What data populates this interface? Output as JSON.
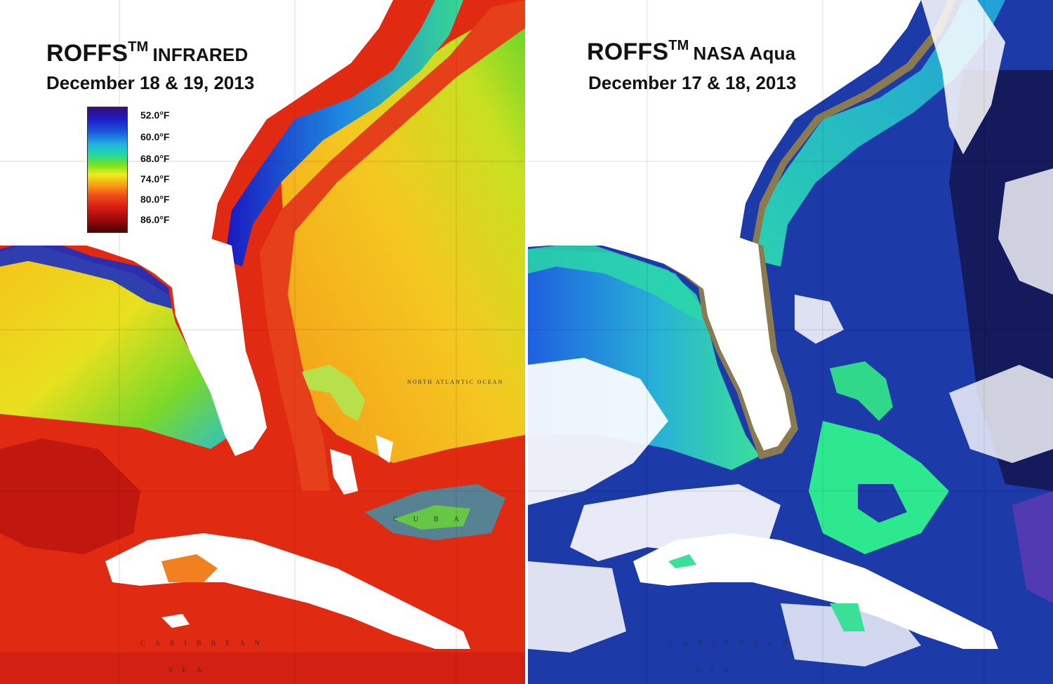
{
  "left_panel": {
    "title": "ROFFS",
    "title_superscript": "TM",
    "title_suffix": "INFRARED",
    "date": "December 18 & 19, 2013",
    "legend": {
      "labels": [
        "52.0°F",
        "60.0°F",
        "68.0°F",
        "74.0°F",
        "80.0°F",
        "86.0°F"
      ]
    },
    "map_labels": {
      "caribbean": "CARIBBEAN",
      "sea": "SEA",
      "cuba": "CUBA",
      "ocean": "NORTH ATLANTIC OCEAN"
    }
  },
  "right_panel": {
    "title": "ROFFS",
    "title_superscript": "TM",
    "title_suffix": "NASA Aqua",
    "date": "December 17 & 18, 2013",
    "map_labels": {
      "caribbean": "CARIBBEAN",
      "sea": "SEA"
    }
  },
  "colors": {
    "sst_warm": "#d8200f",
    "sst_orange": "#f0701a",
    "sst_yellow": "#e8d820",
    "sst_green": "#5fd42a",
    "sst_cold": "#1a2fc0",
    "chl_deep": "#1a2a8c",
    "chl_mid": "#1e55d8",
    "chl_shelf": "#2ad0a0",
    "land": "#ffffff",
    "coast_brown": "#8a7a50"
  }
}
